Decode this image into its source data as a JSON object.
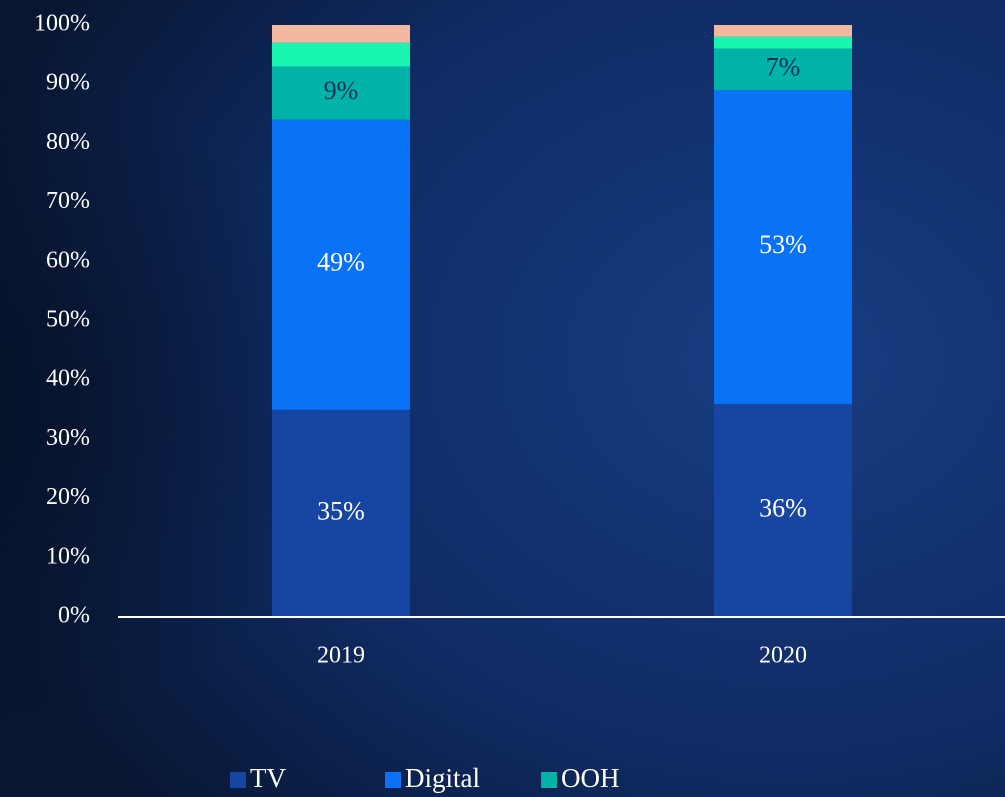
{
  "chart_data": {
    "type": "stacked_bar",
    "categories": [
      "2019",
      "2020"
    ],
    "series": [
      {
        "name": "TV",
        "color": "#1746a2",
        "values": [
          35,
          36
        ],
        "value_labels": [
          "35%",
          "36%"
        ]
      },
      {
        "name": "Digital",
        "color": "#0a72f7",
        "values": [
          49,
          53
        ],
        "value_labels": [
          "49%",
          "53%"
        ]
      },
      {
        "name": "OOH",
        "color": "#00b2a8",
        "values": [
          9,
          7
        ],
        "value_labels": [
          "9%",
          "7%"
        ]
      },
      {
        "color": "#17f5b0",
        "values": [
          4,
          2
        ]
      },
      {
        "color": "#f2b8a0",
        "values": [
          3,
          2
        ]
      }
    ],
    "ylim": [
      0,
      100
    ],
    "yticks": [
      {
        "value": 0,
        "label": "0%"
      },
      {
        "value": 10,
        "label": "10%"
      },
      {
        "value": 20,
        "label": "20%"
      },
      {
        "value": 30,
        "label": "30%"
      },
      {
        "value": 40,
        "label": "40%"
      },
      {
        "value": 50,
        "label": "50%"
      },
      {
        "value": 60,
        "label": "60%"
      },
      {
        "value": 70,
        "label": "70%"
      },
      {
        "value": 80,
        "label": "80%"
      },
      {
        "value": 90,
        "label": "90%"
      },
      {
        "value": 100,
        "label": "100%"
      }
    ],
    "grid": false,
    "legend": "bottom"
  }
}
